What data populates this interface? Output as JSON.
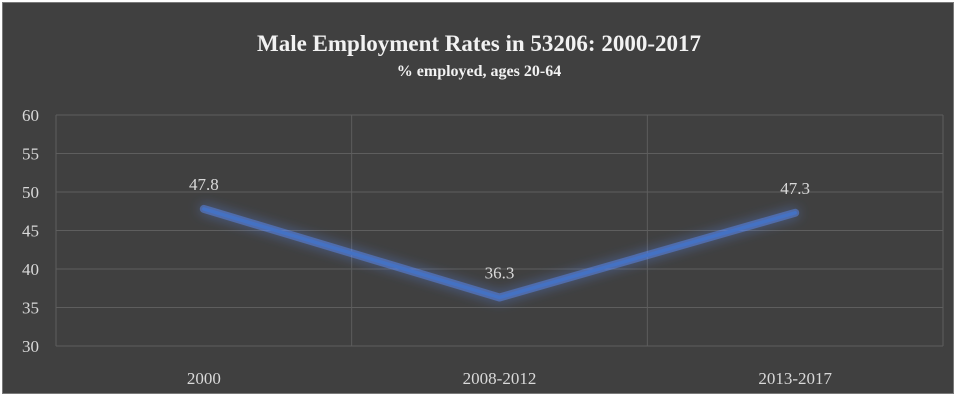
{
  "chart_data": {
    "type": "line",
    "title": "Male Employment Rates in 53206: 2000-2017",
    "subtitle": "% employed, ages 20-64",
    "categories": [
      "2000",
      "2008-2012",
      "2013-2017"
    ],
    "series": [
      {
        "values": [
          47.8,
          36.3,
          47.3
        ]
      }
    ],
    "data_labels": [
      "47.8",
      "36.3",
      "47.3"
    ],
    "ylim": [
      30,
      60
    ],
    "yticks": [
      30,
      35,
      40,
      45,
      50,
      55,
      60
    ],
    "grid": true,
    "legend": "none",
    "colors": {
      "background": "#404040",
      "line": "#4472c4",
      "line_glow": "#5b8fff",
      "grid": "#5e5e5e",
      "text": "#d9d9d9",
      "title": "#f2f2f2"
    }
  }
}
